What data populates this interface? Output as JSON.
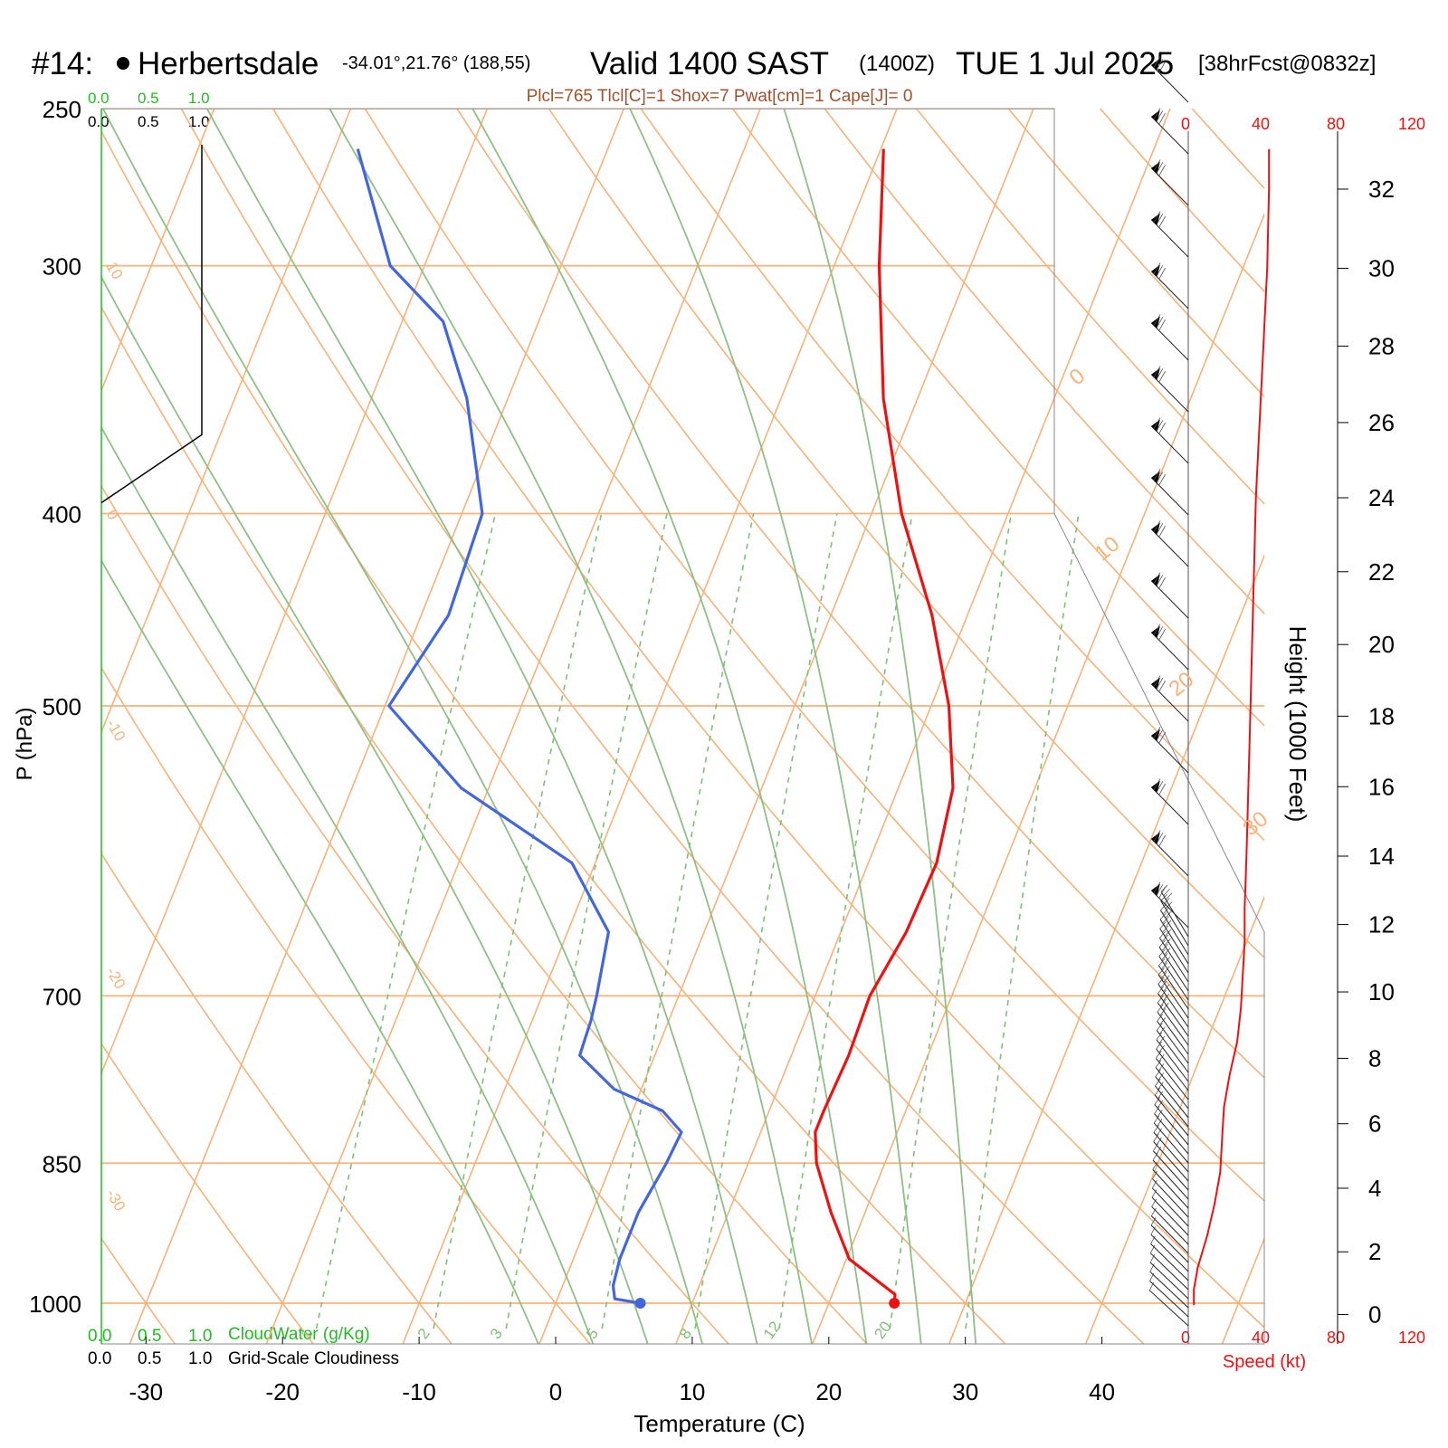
{
  "header": {
    "station_num": "#14:",
    "station_name": "Herbertsdale",
    "coords": "-34.01°,21.76° (188,55)",
    "valid_main": "Valid 1400 SAST",
    "valid_z": "(1400Z)",
    "valid_date": "TUE 1 Jul 2025",
    "forecast": "[38hrFcst@0832z]",
    "indices": "Plcl=765 Tlcl[C]=1 Shox=7 Pwat[cm]=1 Cape[J]= 0"
  },
  "colors": {
    "isotherm": "#f5b27a",
    "dry_adiabat": "#f5b27a",
    "moist_adiabat": "#8fbf86",
    "mixing_ratio": "#7fbf76",
    "temperature": "#ee1111",
    "dewpoint": "#4466dd",
    "indices_text": "#a0522d",
    "cloud_green": "#22bb22",
    "speed_red": "#ee1111"
  },
  "chart_data": {
    "type": "line",
    "title": "Skew-T log-P sounding",
    "xlabel": "Temperature (C)",
    "ylabel": "P (hPa)",
    "y2label": "Height (1000 Feet)",
    "xlim": [
      -30,
      40
    ],
    "ylim": [
      1050,
      250
    ],
    "y_log": true,
    "grid": true,
    "x_ticks": [
      -30,
      -20,
      -10,
      0,
      10,
      20,
      30,
      40
    ],
    "pressure_ticks": [
      250,
      300,
      400,
      500,
      700,
      850,
      1000
    ],
    "height_ticks_kft": [
      0,
      2,
      4,
      6,
      8,
      10,
      12,
      14,
      16,
      18,
      20,
      22,
      24,
      26,
      28,
      30,
      32
    ],
    "mixing_ratio_labels": [
      "1",
      "2",
      "3",
      "5",
      "8",
      "12",
      "20"
    ],
    "isotherm_labels": [
      "10",
      "0",
      "-10",
      "-20",
      "-30"
    ],
    "isotherm_labels_right": [
      "0",
      "10",
      "20",
      "30"
    ],
    "series": [
      {
        "name": "Temperature",
        "points": [
          [
            1000,
            24.8
          ],
          [
            990,
            24.6
          ],
          [
            950,
            20.2
          ],
          [
            900,
            17.5
          ],
          [
            850,
            15.0
          ],
          [
            820,
            14.0
          ],
          [
            800,
            14.0
          ],
          [
            750,
            14.2
          ],
          [
            700,
            14.0
          ],
          [
            650,
            14.8
          ],
          [
            600,
            15.0
          ],
          [
            550,
            14.0
          ],
          [
            500,
            11.3
          ],
          [
            450,
            7.4
          ],
          [
            400,
            2.2
          ],
          [
            350,
            -2.5
          ],
          [
            300,
            -6.7
          ],
          [
            262,
            -9.8
          ]
        ]
      },
      {
        "name": "Dewpoint",
        "points": [
          [
            1000,
            6.2
          ],
          [
            995,
            4.2
          ],
          [
            980,
            3.7
          ],
          [
            950,
            3.4
          ],
          [
            900,
            3.4
          ],
          [
            850,
            4.0
          ],
          [
            820,
            4.2
          ],
          [
            800,
            2.2
          ],
          [
            780,
            -2.0
          ],
          [
            750,
            -5.5
          ],
          [
            720,
            -5.7
          ],
          [
            700,
            -6.0
          ],
          [
            650,
            -7.0
          ],
          [
            600,
            -11.7
          ],
          [
            550,
            -22.0
          ],
          [
            500,
            -29.7
          ],
          [
            450,
            -28.0
          ],
          [
            400,
            -28.5
          ],
          [
            350,
            -33.0
          ],
          [
            320,
            -37.0
          ],
          [
            300,
            -42.5
          ],
          [
            262,
            -48.3
          ]
        ]
      }
    ],
    "wind_speed_kt": {
      "heights_kft": [
        0.3,
        0.8,
        1.5,
        2.5,
        3.5,
        4.5,
        5.5,
        6.5,
        7.5,
        8.5,
        9.5,
        10.5,
        11.5,
        12.5,
        14,
        16,
        18,
        20,
        22,
        24,
        26,
        28,
        30,
        32,
        33
      ],
      "speeds_kt": [
        3,
        3,
        5,
        10,
        14,
        17,
        18,
        19,
        22,
        26,
        28,
        29,
        30,
        30,
        31,
        32,
        33,
        34,
        35,
        36,
        38,
        40,
        42,
        43,
        43
      ]
    }
  },
  "panels": {
    "cloud_water_ticks": [
      "0.0",
      "0.5",
      "1.0"
    ],
    "cloudiness_ticks": [
      "0.0",
      "0.5",
      "1.0"
    ],
    "cloud_water_label": "CloudWater (g/Kg)",
    "cloudiness_label": "Grid-Scale Cloudiness",
    "speed_ticks": [
      "0",
      "40",
      "80",
      "120"
    ],
    "speed_label": "Speed (kt)"
  }
}
